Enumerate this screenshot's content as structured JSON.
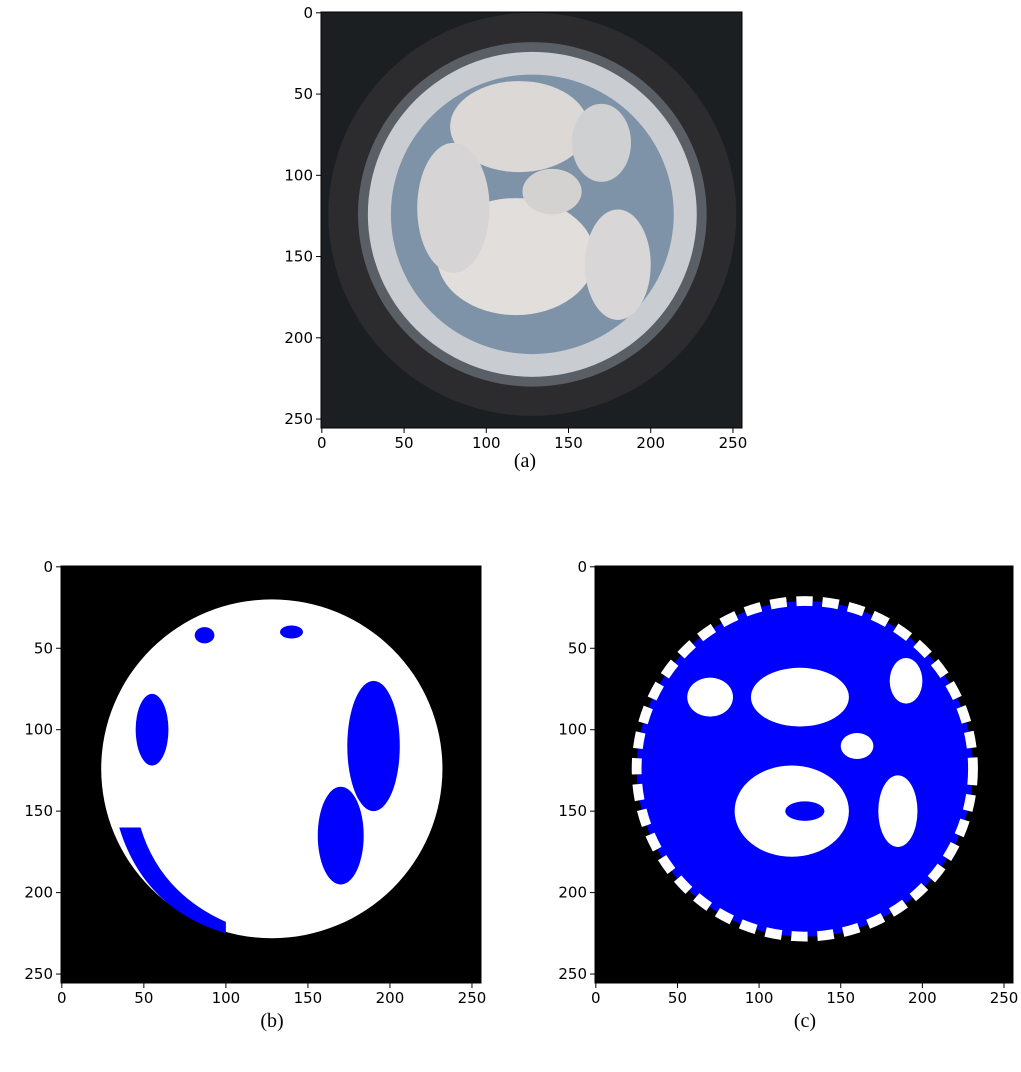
{
  "chart_data": [
    {
      "type": "image",
      "caption": "(a)",
      "xlim": [
        -0.5,
        255.5
      ],
      "ylim": [
        255.5,
        -0.5
      ],
      "xticks": [
        0,
        50,
        100,
        150,
        200,
        250
      ],
      "yticks": [
        0,
        50,
        100,
        150,
        200,
        250
      ]
    },
    {
      "type": "image",
      "caption": "(b)",
      "xlim": [
        -0.5,
        255.5
      ],
      "ylim": [
        255.5,
        -0.5
      ],
      "xticks": [
        0,
        50,
        100,
        150,
        200,
        250
      ],
      "yticks": [
        0,
        50,
        100,
        150,
        200,
        250
      ]
    },
    {
      "type": "image",
      "caption": "(c)",
      "xlim": [
        -0.5,
        255.5
      ],
      "ylim": [
        255.5,
        -0.5
      ],
      "xticks": [
        0,
        50,
        100,
        150,
        200,
        250
      ],
      "yticks": [
        0,
        50,
        100,
        150,
        200,
        250
      ]
    }
  ]
}
